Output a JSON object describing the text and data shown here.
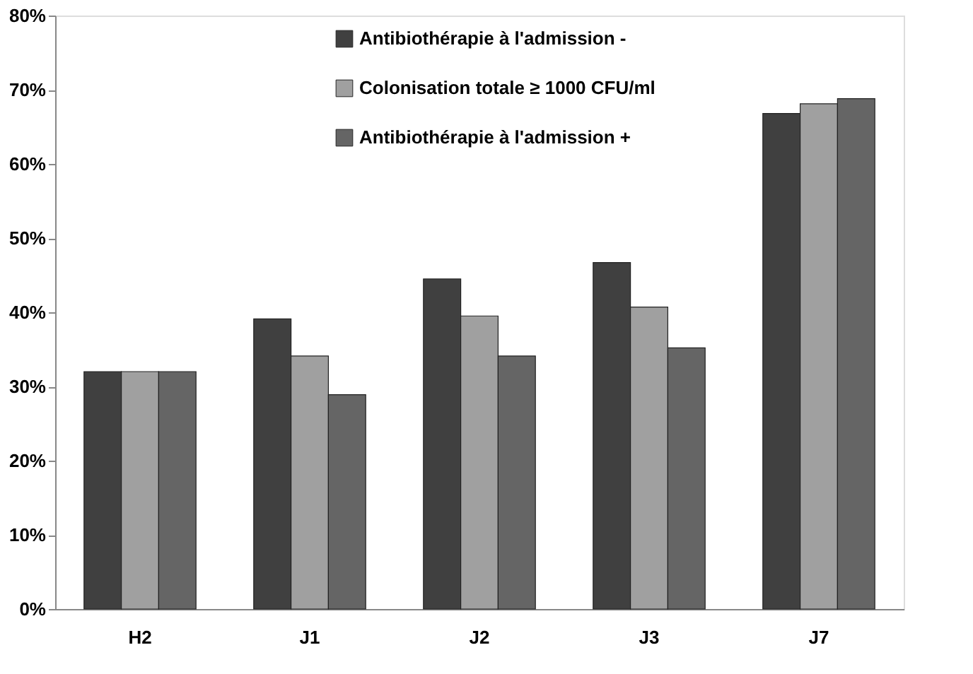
{
  "chart_data": {
    "type": "bar",
    "categories": [
      "H2",
      "J1",
      "J2",
      "J3",
      "J7"
    ],
    "series": [
      {
        "name": "Antibiothérapie à l'admission -",
        "color": "#404040",
        "values": [
          32,
          39.1,
          44.5,
          46.7,
          66.8
        ]
      },
      {
        "name": "Colonisation totale ≥ 1000 CFU/ml",
        "color": "#a0a0a0",
        "values": [
          32,
          34.1,
          39.5,
          40.7,
          68.1
        ]
      },
      {
        "name": "Antibiothérapie à l'admission +",
        "color": "#656565",
        "values": [
          32,
          28.9,
          34.1,
          35.2,
          68.8
        ]
      }
    ],
    "ylim": [
      0,
      80
    ],
    "yticks": [
      {
        "value": 0,
        "label": "0%"
      },
      {
        "value": 10,
        "label": "10%"
      },
      {
        "value": 20,
        "label": "20%"
      },
      {
        "value": 30,
        "label": "30%"
      },
      {
        "value": 40,
        "label": "40%"
      },
      {
        "value": 50,
        "label": "50%"
      },
      {
        "value": 60,
        "label": "60%"
      },
      {
        "value": 70,
        "label": "70%"
      },
      {
        "value": 80,
        "label": "80%"
      }
    ],
    "grid": false,
    "legend": "top"
  }
}
